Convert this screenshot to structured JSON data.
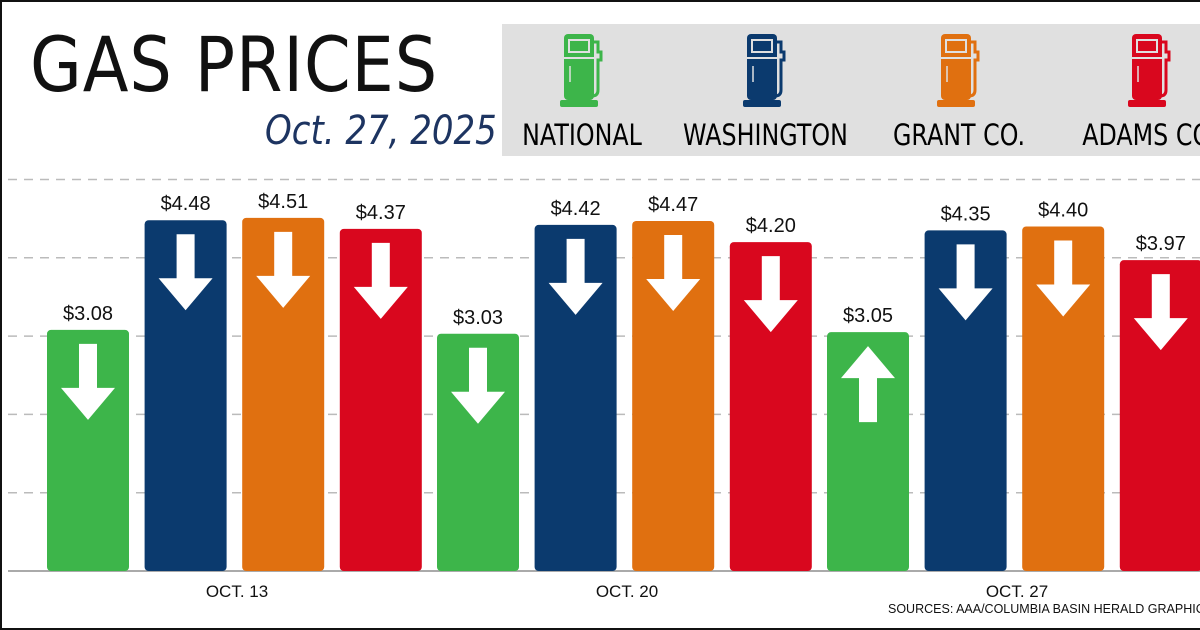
{
  "title": "GAS PRICES",
  "date": "Oct. 27, 2025",
  "source": "SOURCES: AAA/COLUMBIA BASIN HERALD GRAPHIC",
  "legend": [
    {
      "label": "NATIONAL",
      "color": "#3db54a",
      "icon": "gas-pump-icon"
    },
    {
      "label": "WASHINGTON",
      "color": "#0b3a6e",
      "icon": "gas-pump-icon"
    },
    {
      "label": "GRANT CO.",
      "color": "#e07010",
      "icon": "gas-pump-icon"
    },
    {
      "label": "ADAMS CO.",
      "color": "#d9071e",
      "icon": "gas-pump-icon"
    }
  ],
  "chart_data": {
    "type": "bar",
    "categories": [
      "OCT. 13",
      "OCT. 20",
      "OCT. 27"
    ],
    "series": [
      {
        "name": "NATIONAL",
        "values": [
          3.08,
          3.03,
          3.05
        ],
        "labels": [
          "$3.08",
          "$3.03",
          "$3.05"
        ],
        "trend": [
          "down",
          "down",
          "up"
        ]
      },
      {
        "name": "WASHINGTON",
        "values": [
          4.48,
          4.42,
          4.35
        ],
        "labels": [
          "$4.48",
          "$4.42",
          "$4.35"
        ],
        "trend": [
          "down",
          "down",
          "down"
        ]
      },
      {
        "name": "GRANT CO.",
        "values": [
          4.51,
          4.47,
          4.4
        ],
        "labels": [
          "$4.51",
          "$4.47",
          "$4.40"
        ],
        "trend": [
          "down",
          "down",
          "down"
        ]
      },
      {
        "name": "ADAMS CO.",
        "values": [
          4.37,
          4.2,
          3.97
        ],
        "labels": [
          "$4.37",
          "$4.20",
          "$3.97"
        ],
        "trend": [
          "down",
          "down",
          "down"
        ]
      }
    ],
    "ylim": [
      0,
      5
    ],
    "grid": true,
    "legend_position": "top-right"
  }
}
